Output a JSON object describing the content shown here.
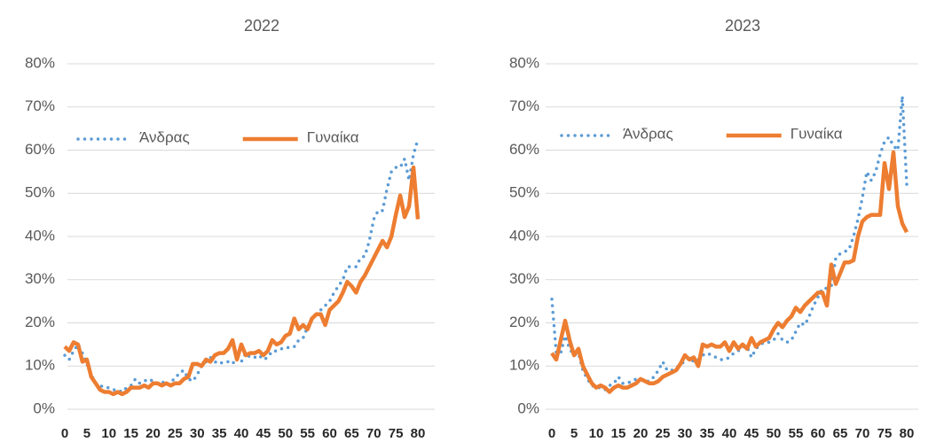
{
  "chart_data": [
    {
      "type": "line",
      "title": "2022",
      "x": [
        0,
        1,
        2,
        3,
        4,
        5,
        6,
        7,
        8,
        9,
        10,
        11,
        12,
        13,
        14,
        15,
        16,
        17,
        18,
        19,
        20,
        21,
        22,
        23,
        24,
        25,
        26,
        27,
        28,
        29,
        30,
        31,
        32,
        33,
        34,
        35,
        36,
        37,
        38,
        39,
        40,
        41,
        42,
        43,
        44,
        45,
        46,
        47,
        48,
        49,
        50,
        51,
        52,
        53,
        54,
        55,
        56,
        57,
        58,
        59,
        60,
        61,
        62,
        63,
        64,
        65,
        66,
        67,
        68,
        69,
        70,
        71,
        72,
        73,
        74,
        75,
        76,
        77,
        78,
        79,
        80
      ],
      "series": [
        {
          "name": "Άνδρας",
          "color": "#5b9bd5",
          "style": "dotted",
          "values": [
            12.5,
            11.5,
            13.5,
            15,
            13,
            10.5,
            8,
            6,
            5.5,
            5,
            5,
            4.5,
            4.5,
            4,
            5,
            5.5,
            7,
            6,
            6.5,
            7,
            6.5,
            6,
            6.5,
            5.5,
            6.5,
            7,
            8.5,
            9,
            7,
            6.5,
            8,
            10,
            11,
            12,
            11,
            10.5,
            11,
            11,
            10.5,
            12,
            11,
            13,
            12,
            12,
            12.5,
            11.5,
            12,
            13.5,
            13.5,
            14,
            14,
            14.5,
            14.5,
            16,
            16.5,
            19,
            21,
            22,
            23,
            24,
            25,
            27,
            28.5,
            30,
            33,
            33,
            33,
            35,
            35.5,
            39,
            44,
            46,
            46,
            51,
            55,
            56,
            56,
            58,
            53,
            59,
            62.5
          ]
        },
        {
          "name": "Γυναίκα",
          "color": "#ed7d31",
          "style": "solid",
          "values": [
            14.5,
            13.5,
            15.5,
            15,
            11,
            11.5,
            7.5,
            6,
            4.5,
            4,
            4,
            3.5,
            4,
            3.5,
            4,
            5,
            5,
            5,
            5.5,
            5,
            6,
            6,
            5.5,
            6,
            5.5,
            6,
            6,
            7,
            7.5,
            10.5,
            10.5,
            10,
            11.5,
            11,
            12.5,
            13,
            13,
            14,
            16,
            11.5,
            15,
            12.5,
            13,
            13,
            13.5,
            12.5,
            13.5,
            16,
            15,
            15.5,
            17,
            17.5,
            21,
            18.5,
            19.5,
            18.5,
            21,
            22,
            22,
            19.5,
            23,
            24,
            25,
            27,
            29.5,
            28.5,
            27,
            29.5,
            31,
            33,
            35,
            37,
            39,
            37.5,
            40,
            45,
            49.5,
            44.5,
            47,
            56,
            44
          ]
        }
      ],
      "xlim": [
        0,
        80
      ],
      "xticks": [
        0,
        5,
        10,
        15,
        20,
        25,
        30,
        35,
        40,
        45,
        50,
        55,
        60,
        65,
        70,
        75,
        80
      ],
      "ylim": [
        0,
        80
      ],
      "yticks": [
        {
          "value": 0,
          "label": "0%"
        },
        {
          "value": 10,
          "label": "10%"
        },
        {
          "value": 20,
          "label": "20%"
        },
        {
          "value": 30,
          "label": "30%"
        },
        {
          "value": 40,
          "label": "40%"
        },
        {
          "value": 50,
          "label": "50%"
        },
        {
          "value": 60,
          "label": "60%"
        },
        {
          "value": 70,
          "label": "70%"
        },
        {
          "value": 80,
          "label": "80%"
        }
      ],
      "grid": true,
      "legend": "top-left"
    },
    {
      "type": "line",
      "title": "2023",
      "x": [
        0,
        1,
        2,
        3,
        4,
        5,
        6,
        7,
        8,
        9,
        10,
        11,
        12,
        13,
        14,
        15,
        16,
        17,
        18,
        19,
        20,
        21,
        22,
        23,
        24,
        25,
        26,
        27,
        28,
        29,
        30,
        31,
        32,
        33,
        34,
        35,
        36,
        37,
        38,
        39,
        40,
        41,
        42,
        43,
        44,
        45,
        46,
        47,
        48,
        49,
        50,
        51,
        52,
        53,
        54,
        55,
        56,
        57,
        58,
        59,
        60,
        61,
        62,
        63,
        64,
        65,
        66,
        67,
        68,
        69,
        70,
        71,
        72,
        73,
        74,
        75,
        76,
        77,
        78,
        79,
        80
      ],
      "series": [
        {
          "name": "Άνδρας",
          "color": "#5b9bd5",
          "style": "dotted",
          "values": [
            25.5,
            13,
            13,
            17,
            14,
            12.5,
            13,
            9,
            7,
            5.5,
            5,
            5,
            4.5,
            5.5,
            6,
            7.5,
            6,
            6,
            6.5,
            7,
            7,
            6.5,
            6.5,
            7.5,
            9,
            11,
            9,
            9,
            9.5,
            10.5,
            11,
            12,
            11,
            11.5,
            12.5,
            13,
            12.5,
            12,
            11.5,
            11.5,
            12,
            13,
            13.5,
            14.5,
            14.5,
            12,
            14,
            15,
            15.5,
            15.5,
            16,
            17.5,
            16,
            15.5,
            16,
            18,
            20,
            19.5,
            21.5,
            24,
            26,
            28,
            28,
            28.5,
            35,
            36,
            36.5,
            37,
            40,
            44,
            49,
            55,
            53,
            55,
            59,
            62,
            63,
            61,
            60,
            72.5,
            52
          ]
        },
        {
          "name": "Γυναίκα",
          "color": "#ed7d31",
          "style": "solid",
          "values": [
            13,
            11.5,
            16,
            20.5,
            16,
            12.5,
            14,
            10,
            8,
            6,
            5,
            5.5,
            5,
            4,
            5,
            5.5,
            5,
            5,
            5.5,
            6,
            7,
            6.5,
            6,
            6,
            6.5,
            7.5,
            8,
            8.5,
            9,
            10.5,
            12.5,
            11.5,
            12,
            10,
            15,
            14.5,
            15,
            14.5,
            14.5,
            15.5,
            13.5,
            15.5,
            14,
            15,
            14,
            16.5,
            14.5,
            15.5,
            16,
            16.5,
            18.5,
            20,
            19,
            20.5,
            21.5,
            23.5,
            22.5,
            24,
            25,
            26,
            27,
            27,
            24,
            33.5,
            29,
            31.5,
            34,
            34,
            34.5,
            40,
            43.5,
            44.5,
            45,
            45,
            45,
            57,
            51,
            59.5,
            47,
            43,
            41
          ]
        }
      ],
      "xlim": [
        0,
        80
      ],
      "xticks": [
        0,
        5,
        10,
        15,
        20,
        25,
        30,
        35,
        40,
        45,
        50,
        55,
        60,
        65,
        70,
        75,
        80
      ],
      "ylim": [
        0,
        80
      ],
      "yticks": [
        {
          "value": 0,
          "label": "0%"
        },
        {
          "value": 10,
          "label": "10%"
        },
        {
          "value": 20,
          "label": "20%"
        },
        {
          "value": 30,
          "label": "30%"
        },
        {
          "value": 40,
          "label": "40%"
        },
        {
          "value": 50,
          "label": "50%"
        },
        {
          "value": 60,
          "label": "60%"
        },
        {
          "value": 70,
          "label": "70%"
        },
        {
          "value": 80,
          "label": "80%"
        }
      ],
      "grid": true,
      "legend": "top-left"
    }
  ]
}
